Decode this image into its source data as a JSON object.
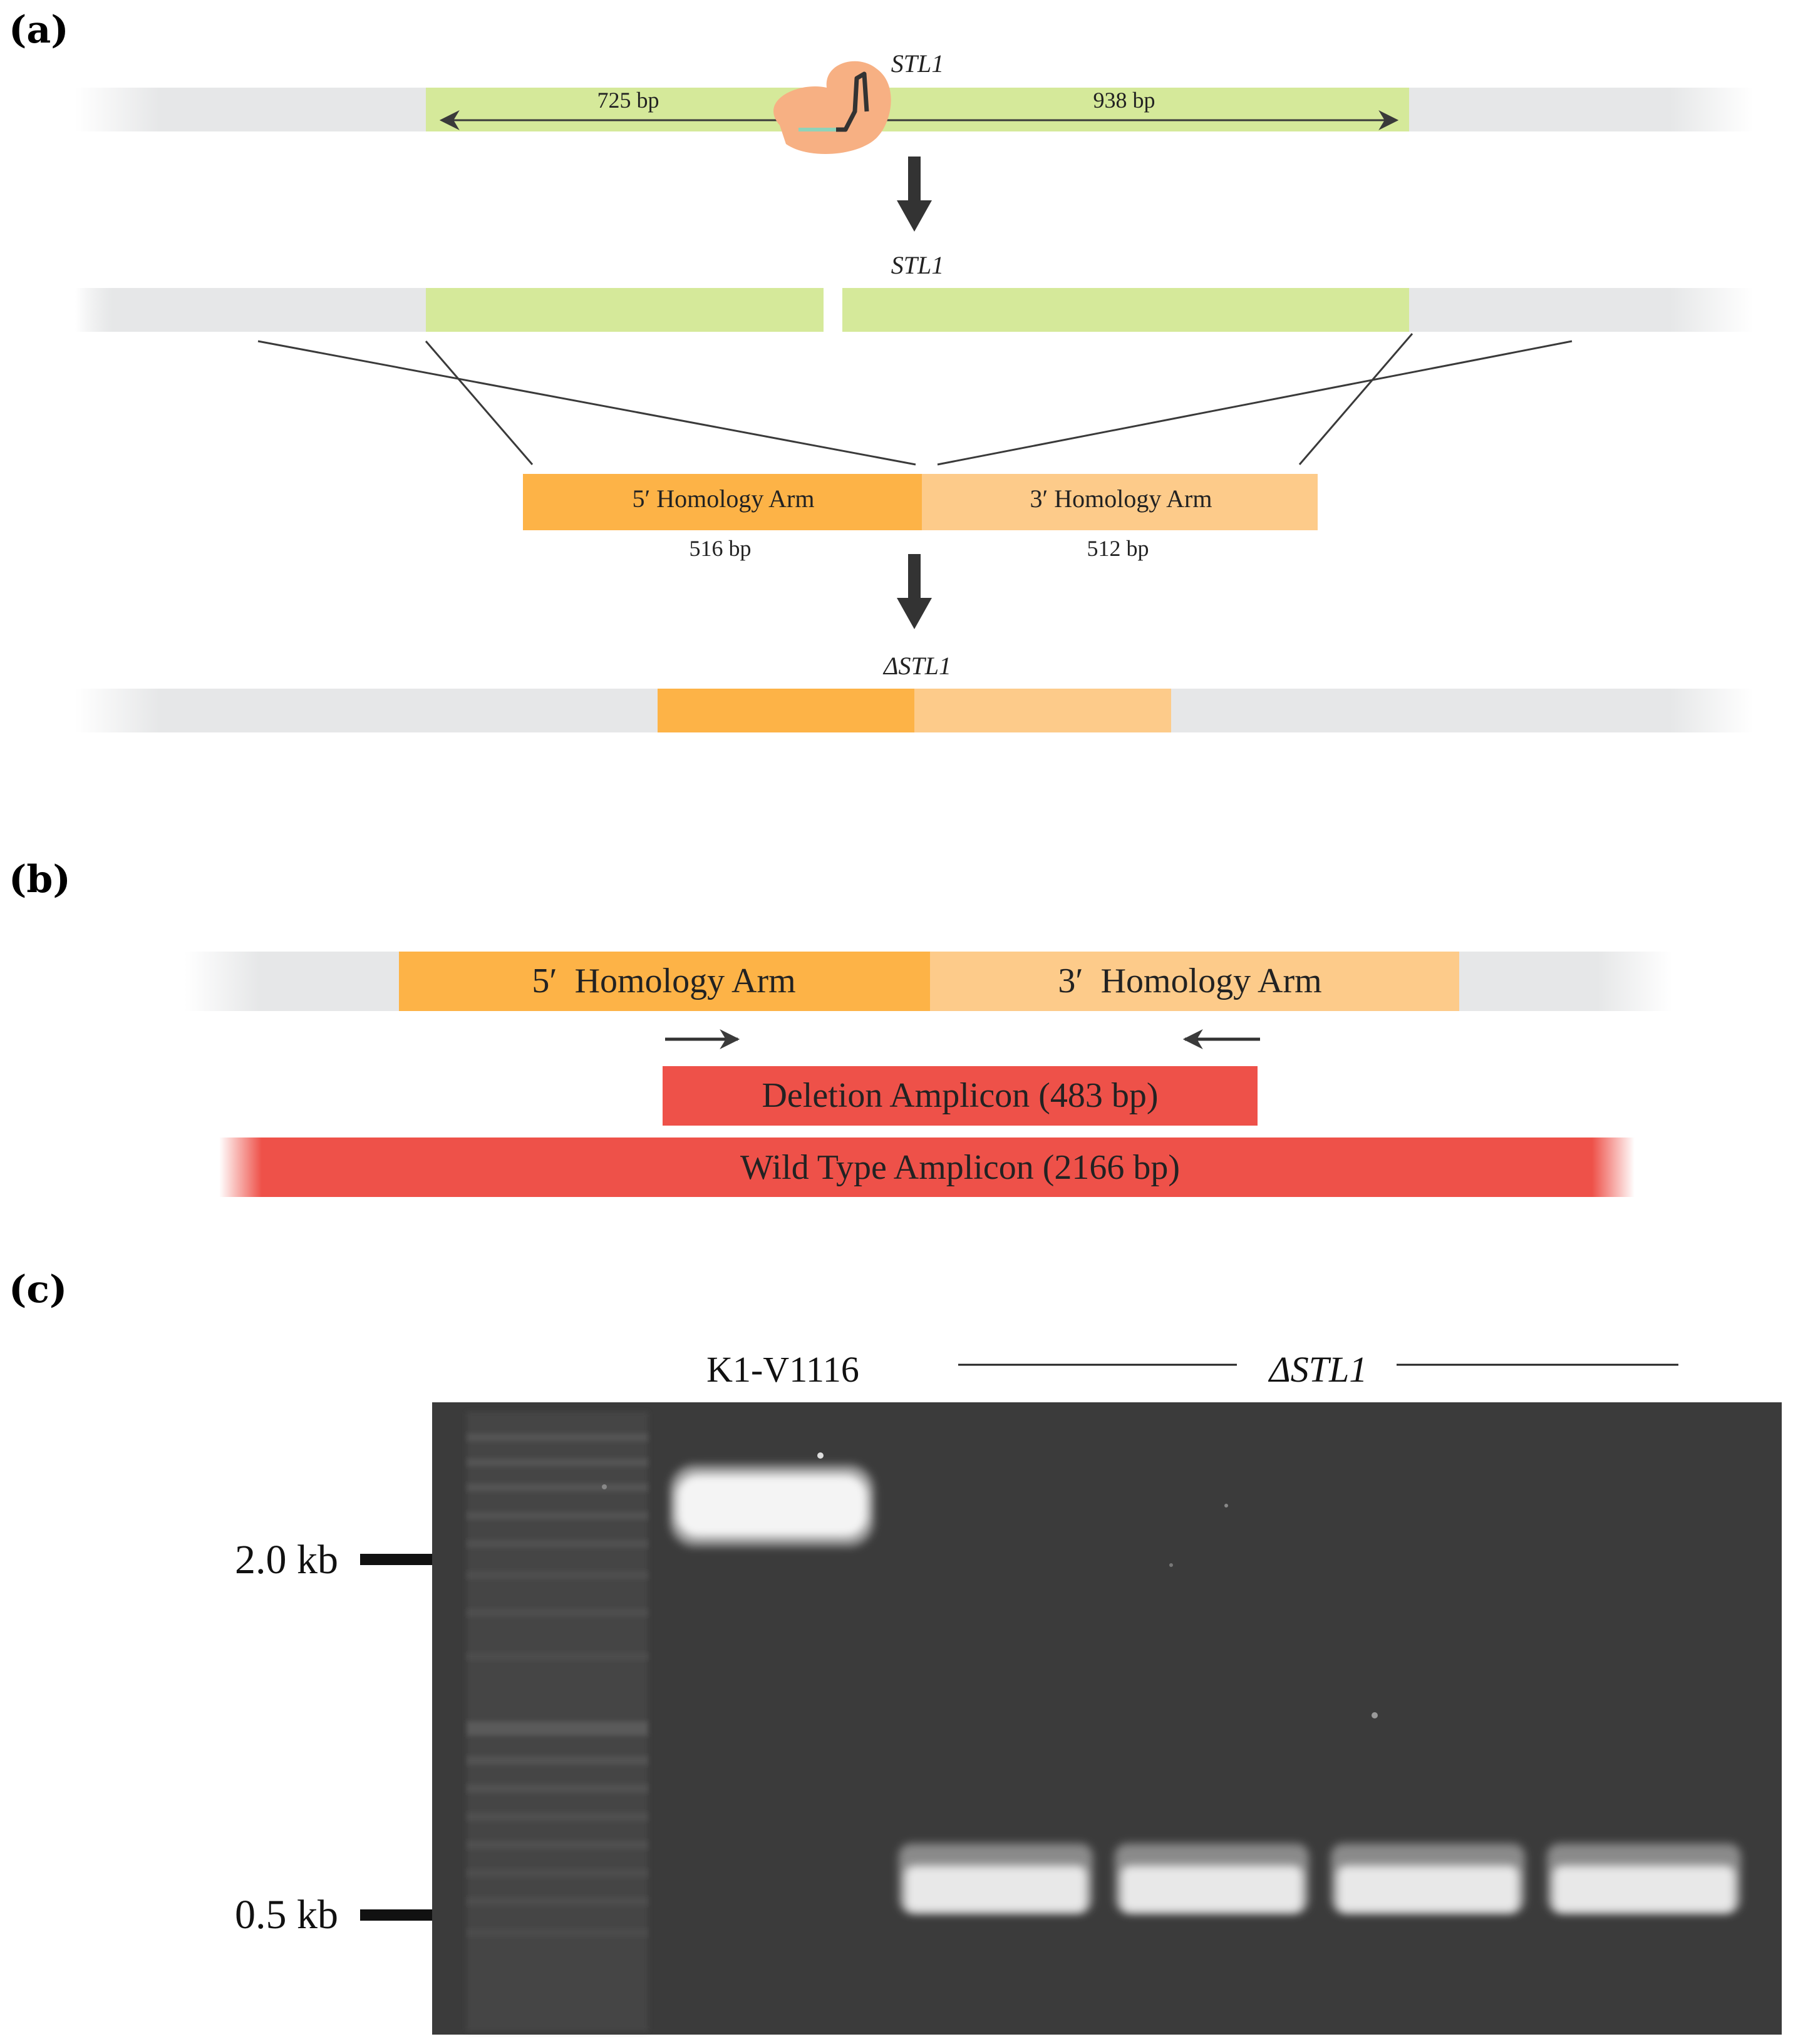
{
  "panels": {
    "a": "(a)",
    "b": "(b)",
    "c": "(c)"
  },
  "panel_a": {
    "gene_label_top": "STL1",
    "left_length": "725 bp",
    "right_length": "938 bp",
    "gene_label_cut": "STL1",
    "arm5_label": "5′ Homology Arm",
    "arm3_label": "3′ Homology Arm",
    "arm5_length": "516 bp",
    "arm3_length": "512 bp",
    "deletion_label": "ΔSTL1"
  },
  "panel_b": {
    "arm5_label": "5′  Homology Arm",
    "arm3_label": "3′  Homology Arm",
    "deletion_amplicon": "Deletion Amplicon (483 bp)",
    "wildtype_amplicon": "Wild Type Amplicon (2166 bp)"
  },
  "panel_c": {
    "lane_wt_label": "K1-V1116",
    "lane_mut_label": "ΔSTL1",
    "marker_high": "2.0 kb",
    "marker_low": "0.5 kb"
  },
  "colors": {
    "chromosome": "#e6e7e8",
    "gene": "#d5e99a",
    "arm5": "#fdb347",
    "arm3": "#fdcb8a",
    "amplicon": "#ee5149",
    "cas9": "#f7b083",
    "gel": "#3b3b3b",
    "band": "#f4f4f4"
  }
}
